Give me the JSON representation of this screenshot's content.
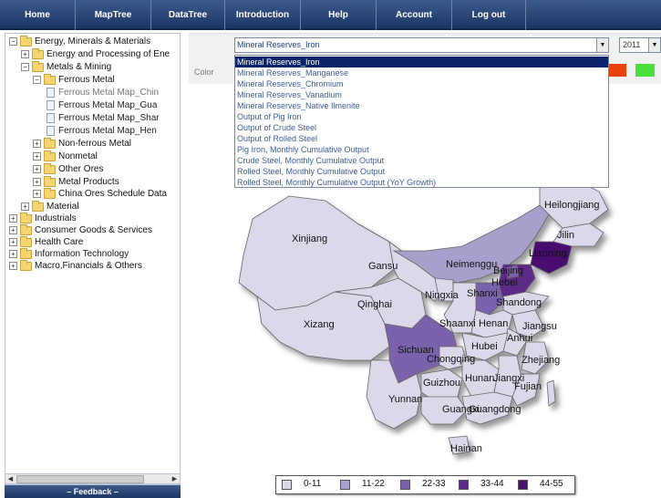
{
  "nav": {
    "items": [
      "Home",
      "MapTree",
      "DataTree",
      "Introduction",
      "Help",
      "Account",
      "Log out"
    ]
  },
  "tree": {
    "items": [
      {
        "label": "Energy, Minerals & Materials",
        "expander": "−",
        "icon": "folder-icon"
      },
      {
        "label": "Energy and Processing of Ene",
        "expander": "+",
        "icon": "folder-icon"
      },
      {
        "label": "Metals & Mining",
        "expander": "−",
        "icon": "folder-icon"
      },
      {
        "label": "Ferrous Metal",
        "expander": "−",
        "icon": "folder-icon"
      },
      {
        "label": "Ferrous Metal Map_Chin",
        "expander": "",
        "icon": "document-icon"
      },
      {
        "label": "Ferrous Metal Map_Gua",
        "expander": "",
        "icon": "document-icon"
      },
      {
        "label": "Ferrous Metal Map_Shar",
        "expander": "",
        "icon": "document-icon"
      },
      {
        "label": "Ferrous Metal Map_Hen",
        "expander": "",
        "icon": "document-icon"
      },
      {
        "label": "Non-ferrous Metal",
        "expander": "+",
        "icon": "folder-icon"
      },
      {
        "label": "Nonmetal",
        "expander": "+",
        "icon": "folder-icon"
      },
      {
        "label": "Other Ores",
        "expander": "+",
        "icon": "folder-icon"
      },
      {
        "label": "Metal Products",
        "expander": "+",
        "icon": "folder-icon"
      },
      {
        "label": "China Ores Schedule Data",
        "expander": "+",
        "icon": "folder-icon"
      },
      {
        "label": "Material",
        "expander": "+",
        "icon": "folder-icon"
      },
      {
        "label": "Industrials",
        "expander": "+",
        "icon": "folder-icon"
      },
      {
        "label": "Consumer Goods & Services",
        "expander": "+",
        "icon": "folder-icon"
      },
      {
        "label": "Health Care",
        "expander": "+",
        "icon": "folder-icon"
      },
      {
        "label": "Information Technology",
        "expander": "+",
        "icon": "folder-icon"
      },
      {
        "label": "Macro,Financials & Others",
        "expander": "+",
        "icon": "folder-icon"
      }
    ]
  },
  "feedback": {
    "label": "– Feedback –"
  },
  "controls": {
    "color_label": "Color",
    "indicator_value": "Mineral Reserves_Iron",
    "year_value": "2011",
    "colors": {
      "swatch_red": "#e8420e",
      "swatch_green": "#49e03e"
    }
  },
  "dropdown": {
    "options": [
      "Mineral Reserves_Iron",
      "Mineral Reserves_Manganese",
      "Mineral Reserves_Chromium",
      "Mineral Reserves_Vanadium",
      "Mineral Reserves_Native Ilmenite",
      "Output of Pig Iron",
      "Output of Crude Steel",
      "Output of Rolled Steel",
      "Pig Iron, Monthly Cumulative Output",
      "Crude Steel, Monthly Cumulative Output",
      "Rolled Steel, Monthly Cumulative Output",
      "Rolled Steel, Monthly Cumulative Output (YoY Growth)"
    ],
    "selected_index": 0
  },
  "map": {
    "provinces": [
      "Heilongjiang",
      "Jilin",
      "Liaoning",
      "Xinjiang",
      "Gansu",
      "Neimenggu",
      "Beijing",
      "Hebei",
      "Qinghai",
      "Ningxia",
      "Shanxi",
      "Shandong",
      "Xizang",
      "Shaanxi",
      "Henan",
      "Jiangsu",
      "Anhui",
      "Sichuan",
      "Hubei",
      "Chongqing",
      "Zhejiang",
      "Jiangxi",
      "Hunan",
      "Guizhou",
      "Fujian",
      "Yunnan",
      "Guangxi",
      "Guangdong",
      "Hainan"
    ]
  },
  "legend": {
    "items": [
      {
        "label": "0-11",
        "color": "#dcd8ea"
      },
      {
        "label": "11-22",
        "color": "#a99fcc"
      },
      {
        "label": "22-33",
        "color": "#7a62ad"
      },
      {
        "label": "33-44",
        "color": "#5d2c8a"
      },
      {
        "label": "44-55",
        "color": "#4a1070"
      }
    ]
  }
}
